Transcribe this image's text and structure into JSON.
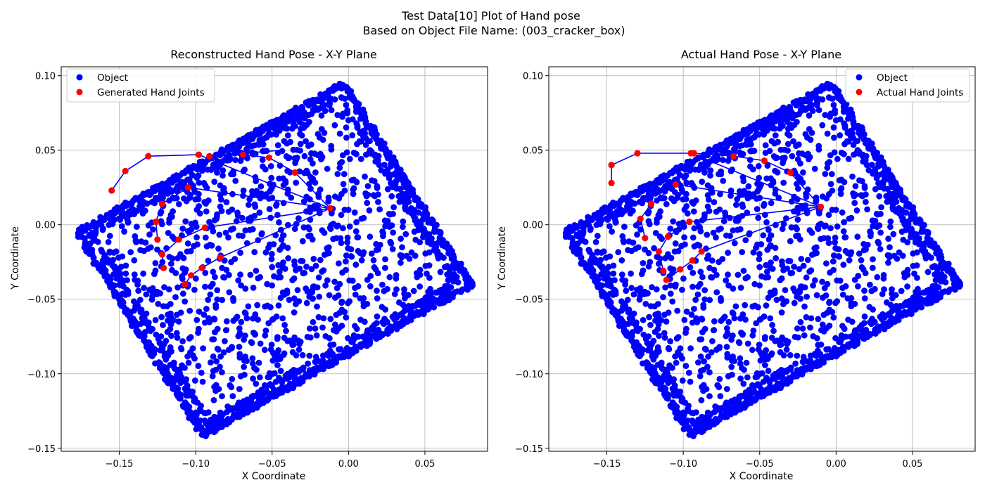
{
  "figure": {
    "title_line1": "Test Data[10] Plot of Hand pose",
    "title_line2": "Based on Object File Name: (003_cracker_box)"
  },
  "chart_data": [
    {
      "type": "scatter",
      "title": "Reconstructed Hand Pose - X-Y Plane",
      "xlabel": "X Coordinate",
      "ylabel": "Y Coordinate",
      "xlim": [
        -0.188,
        0.091
      ],
      "ylim": [
        -0.152,
        0.106
      ],
      "xticks": [
        -0.15,
        -0.1,
        -0.05,
        0.0,
        0.05
      ],
      "xtick_labels": [
        "−0.15",
        "−0.10",
        "−0.05",
        "0.00",
        "0.05"
      ],
      "yticks": [
        -0.15,
        -0.1,
        -0.05,
        0.0,
        0.05,
        0.1
      ],
      "ytick_labels": [
        "−0.15",
        "−0.10",
        "−0.05",
        "0.00",
        "0.05",
        "0.10"
      ],
      "grid": true,
      "legend_position": "top-left",
      "legend": [
        {
          "label": "Object",
          "color": "#0000ff"
        },
        {
          "label": "Generated Hand Joints",
          "color": "#ff0000"
        }
      ],
      "object_outline": [
        [
          -0.177,
          -0.005
        ],
        [
          -0.003,
          0.094
        ],
        [
          0.08,
          -0.04
        ],
        [
          -0.095,
          -0.141
        ]
      ],
      "hand_joints": [
        [
          -0.012,
          0.011
        ],
        [
          -0.155,
          0.023
        ],
        [
          -0.146,
          0.036
        ],
        [
          -0.131,
          0.046
        ],
        [
          -0.098,
          0.047
        ],
        [
          -0.091,
          0.046
        ],
        [
          -0.069,
          0.047
        ],
        [
          -0.052,
          0.045
        ],
        [
          -0.035,
          0.035
        ],
        [
          -0.105,
          0.025
        ],
        [
          -0.122,
          0.014
        ],
        [
          -0.126,
          0.002
        ],
        [
          -0.125,
          -0.01
        ],
        [
          -0.122,
          -0.02
        ],
        [
          -0.121,
          -0.029
        ],
        [
          -0.103,
          -0.034
        ],
        [
          -0.107,
          -0.04
        ],
        [
          -0.094,
          -0.002
        ],
        [
          -0.111,
          -0.01
        ],
        [
          -0.084,
          -0.022
        ],
        [
          -0.096,
          -0.029
        ]
      ],
      "hand_bones": [
        [
          [
            -0.012,
            0.011
          ],
          [
            -0.098,
            0.047
          ],
          [
            -0.131,
            0.046
          ],
          [
            -0.146,
            0.036
          ],
          [
            -0.155,
            0.023
          ]
        ],
        [
          [
            -0.012,
            0.011
          ],
          [
            -0.035,
            0.035
          ],
          [
            -0.052,
            0.045
          ],
          [
            -0.069,
            0.047
          ],
          [
            -0.091,
            0.046
          ]
        ],
        [
          [
            -0.012,
            0.011
          ],
          [
            -0.105,
            0.025
          ],
          [
            -0.122,
            0.014
          ],
          [
            -0.126,
            0.002
          ],
          [
            -0.125,
            -0.01
          ]
        ],
        [
          [
            -0.012,
            0.011
          ],
          [
            -0.094,
            -0.002
          ],
          [
            -0.111,
            -0.01
          ],
          [
            -0.122,
            -0.02
          ],
          [
            -0.121,
            -0.029
          ]
        ],
        [
          [
            -0.012,
            0.011
          ],
          [
            -0.084,
            -0.022
          ],
          [
            -0.096,
            -0.029
          ],
          [
            -0.103,
            -0.034
          ],
          [
            -0.107,
            -0.04
          ]
        ],
        [
          [
            -0.091,
            0.046
          ],
          [
            -0.044,
            0.05
          ]
        ]
      ]
    },
    {
      "type": "scatter",
      "title": "Actual Hand Pose - X-Y Plane",
      "xlabel": "X Coordinate",
      "ylabel": "Y Coordinate",
      "xlim": [
        -0.188,
        0.091
      ],
      "ylim": [
        -0.152,
        0.106
      ],
      "xticks": [
        -0.15,
        -0.1,
        -0.05,
        0.0,
        0.05
      ],
      "xtick_labels": [
        "−0.15",
        "−0.10",
        "−0.05",
        "0.00",
        "0.05"
      ],
      "yticks": [
        -0.15,
        -0.1,
        -0.05,
        0.0,
        0.05,
        0.1
      ],
      "ytick_labels": [
        "−0.15",
        "−0.10",
        "−0.05",
        "0.00",
        "0.05",
        "0.10"
      ],
      "grid": true,
      "legend_position": "top-right",
      "legend": [
        {
          "label": "Object",
          "color": "#0000ff"
        },
        {
          "label": "Actual Hand Joints",
          "color": "#ff0000"
        }
      ],
      "object_outline": [
        [
          -0.177,
          -0.005
        ],
        [
          -0.003,
          0.094
        ],
        [
          0.08,
          -0.04
        ],
        [
          -0.095,
          -0.141
        ]
      ],
      "hand_joints": [
        [
          -0.01,
          0.012
        ],
        [
          -0.147,
          0.028
        ],
        [
          -0.147,
          0.04
        ],
        [
          -0.13,
          0.048
        ],
        [
          -0.095,
          0.048
        ],
        [
          -0.093,
          0.048
        ],
        [
          -0.067,
          0.046
        ],
        [
          -0.047,
          0.043
        ],
        [
          -0.03,
          0.035
        ],
        [
          -0.105,
          0.027
        ],
        [
          -0.121,
          0.014
        ],
        [
          -0.128,
          0.004
        ],
        [
          -0.125,
          -0.009
        ],
        [
          -0.116,
          -0.018
        ],
        [
          -0.113,
          -0.031
        ],
        [
          -0.096,
          0.002
        ],
        [
          -0.111,
          -0.037
        ],
        [
          -0.102,
          -0.03
        ],
        [
          -0.11,
          -0.008
        ],
        [
          -0.088,
          -0.018
        ],
        [
          -0.094,
          -0.024
        ]
      ],
      "hand_bones": [
        [
          [
            -0.01,
            0.012
          ],
          [
            -0.095,
            0.048
          ],
          [
            -0.13,
            0.048
          ],
          [
            -0.147,
            0.04
          ],
          [
            -0.147,
            0.028
          ]
        ],
        [
          [
            -0.01,
            0.012
          ],
          [
            -0.03,
            0.035
          ],
          [
            -0.047,
            0.043
          ],
          [
            -0.067,
            0.046
          ],
          [
            -0.093,
            0.048
          ]
        ],
        [
          [
            -0.01,
            0.012
          ],
          [
            -0.105,
            0.027
          ],
          [
            -0.121,
            0.014
          ],
          [
            -0.128,
            0.004
          ],
          [
            -0.125,
            -0.009
          ]
        ],
        [
          [
            -0.01,
            0.012
          ],
          [
            -0.096,
            0.002
          ],
          [
            -0.11,
            -0.008
          ],
          [
            -0.116,
            -0.018
          ],
          [
            -0.113,
            -0.031
          ]
        ],
        [
          [
            -0.01,
            0.012
          ],
          [
            -0.088,
            -0.018
          ],
          [
            -0.094,
            -0.024
          ],
          [
            -0.102,
            -0.03
          ],
          [
            -0.111,
            -0.037
          ]
        ]
      ]
    }
  ]
}
